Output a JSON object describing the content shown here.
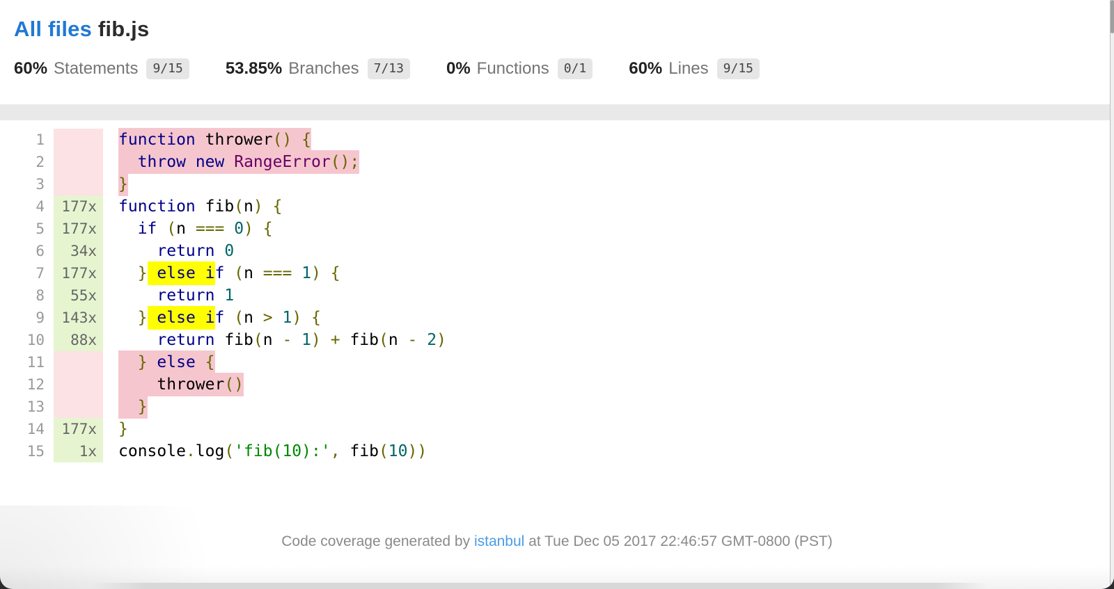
{
  "breadcrumb": {
    "all_files": "All files",
    "separator": " ",
    "file_name": "fib.js"
  },
  "metrics": [
    {
      "pct": "60%",
      "label": "Statements",
      "fraction": "9/15"
    },
    {
      "pct": "53.85%",
      "label": "Branches",
      "fraction": "7/13"
    },
    {
      "pct": "0%",
      "label": "Functions",
      "fraction": "0/1"
    },
    {
      "pct": "60%",
      "label": "Lines",
      "fraction": "9/15"
    }
  ],
  "code": {
    "lines": [
      {
        "num": "1",
        "hits": "",
        "cover": "no",
        "segments": [
          {
            "t": "function",
            "c": "kwd",
            "h": "s"
          },
          {
            "t": " thrower",
            "c": "pln",
            "h": "s"
          },
          {
            "t": "() ",
            "c": "pun",
            "h": "s"
          },
          {
            "t": "{",
            "c": "pun",
            "h": "s"
          }
        ]
      },
      {
        "num": "2",
        "hits": "",
        "cover": "no",
        "segments": [
          {
            "t": "  ",
            "c": "pln",
            "h": "s"
          },
          {
            "t": "throw",
            "c": "kwd",
            "h": "s"
          },
          {
            "t": " ",
            "c": "pln",
            "h": "s"
          },
          {
            "t": "new",
            "c": "kwd",
            "h": "s"
          },
          {
            "t": " ",
            "c": "pln",
            "h": "s"
          },
          {
            "t": "RangeError",
            "c": "typ",
            "h": "s"
          },
          {
            "t": "();",
            "c": "pun",
            "h": "s"
          }
        ]
      },
      {
        "num": "3",
        "hits": "",
        "cover": "no",
        "segments": [
          {
            "t": "}",
            "c": "pun",
            "h": "s"
          }
        ]
      },
      {
        "num": "4",
        "hits": "177x",
        "cover": "yes",
        "segments": [
          {
            "t": "function",
            "c": "kwd"
          },
          {
            "t": " fib",
            "c": "pln"
          },
          {
            "t": "(",
            "c": "pun"
          },
          {
            "t": "n",
            "c": "pln"
          },
          {
            "t": ") ",
            "c": "pun"
          },
          {
            "t": "{",
            "c": "pun"
          }
        ]
      },
      {
        "num": "5",
        "hits": "177x",
        "cover": "yes",
        "segments": [
          {
            "t": "  ",
            "c": "pln"
          },
          {
            "t": "if",
            "c": "kwd"
          },
          {
            "t": " ",
            "c": "pln"
          },
          {
            "t": "(",
            "c": "pun"
          },
          {
            "t": "n ",
            "c": "pln"
          },
          {
            "t": "===",
            "c": "pun"
          },
          {
            "t": " ",
            "c": "pln"
          },
          {
            "t": "0",
            "c": "lit"
          },
          {
            "t": ") ",
            "c": "pun"
          },
          {
            "t": "{",
            "c": "pun"
          }
        ]
      },
      {
        "num": "6",
        "hits": "34x",
        "cover": "yes",
        "segments": [
          {
            "t": "    ",
            "c": "pln"
          },
          {
            "t": "return",
            "c": "kwd"
          },
          {
            "t": " ",
            "c": "pln"
          },
          {
            "t": "0",
            "c": "lit"
          }
        ]
      },
      {
        "num": "7",
        "hits": "177x",
        "cover": "yes",
        "segments": [
          {
            "t": "  ",
            "c": "pln"
          },
          {
            "t": "}",
            "c": "pun"
          },
          {
            "t": " ",
            "c": "pln",
            "h": "b"
          },
          {
            "t": "else",
            "c": "kwd",
            "h": "b"
          },
          {
            "t": " i",
            "c": "kwd",
            "h": "b"
          },
          {
            "t": "f",
            "c": "kwd"
          },
          {
            "t": " ",
            "c": "pln"
          },
          {
            "t": "(",
            "c": "pun"
          },
          {
            "t": "n ",
            "c": "pln"
          },
          {
            "t": "===",
            "c": "pun"
          },
          {
            "t": " ",
            "c": "pln"
          },
          {
            "t": "1",
            "c": "lit"
          },
          {
            "t": ") ",
            "c": "pun"
          },
          {
            "t": "{",
            "c": "pun"
          }
        ]
      },
      {
        "num": "8",
        "hits": "55x",
        "cover": "yes",
        "segments": [
          {
            "t": "    ",
            "c": "pln"
          },
          {
            "t": "return",
            "c": "kwd"
          },
          {
            "t": " ",
            "c": "pln"
          },
          {
            "t": "1",
            "c": "lit"
          }
        ]
      },
      {
        "num": "9",
        "hits": "143x",
        "cover": "yes",
        "segments": [
          {
            "t": "  ",
            "c": "pln"
          },
          {
            "t": "}",
            "c": "pun"
          },
          {
            "t": " ",
            "c": "pln",
            "h": "b"
          },
          {
            "t": "else",
            "c": "kwd",
            "h": "b"
          },
          {
            "t": " i",
            "c": "kwd",
            "h": "b"
          },
          {
            "t": "f",
            "c": "kwd"
          },
          {
            "t": " ",
            "c": "pln"
          },
          {
            "t": "(",
            "c": "pun"
          },
          {
            "t": "n ",
            "c": "pln"
          },
          {
            "t": ">",
            "c": "pun"
          },
          {
            "t": " ",
            "c": "pln"
          },
          {
            "t": "1",
            "c": "lit"
          },
          {
            "t": ") ",
            "c": "pun"
          },
          {
            "t": "{",
            "c": "pun"
          }
        ]
      },
      {
        "num": "10",
        "hits": "88x",
        "cover": "yes",
        "segments": [
          {
            "t": "    ",
            "c": "pln"
          },
          {
            "t": "return",
            "c": "kwd"
          },
          {
            "t": " fib",
            "c": "pln"
          },
          {
            "t": "(",
            "c": "pun"
          },
          {
            "t": "n ",
            "c": "pln"
          },
          {
            "t": "-",
            "c": "pun"
          },
          {
            "t": " ",
            "c": "pln"
          },
          {
            "t": "1",
            "c": "lit"
          },
          {
            "t": ")",
            "c": "pun"
          },
          {
            "t": " ",
            "c": "pln"
          },
          {
            "t": "+",
            "c": "pun"
          },
          {
            "t": " fib",
            "c": "pln"
          },
          {
            "t": "(",
            "c": "pun"
          },
          {
            "t": "n ",
            "c": "pln"
          },
          {
            "t": "-",
            "c": "pun"
          },
          {
            "t": " ",
            "c": "pln"
          },
          {
            "t": "2",
            "c": "lit"
          },
          {
            "t": ")",
            "c": "pun"
          }
        ]
      },
      {
        "num": "11",
        "hits": "",
        "cover": "no",
        "segments": [
          {
            "t": "  ",
            "c": "pln",
            "h": "s"
          },
          {
            "t": "}",
            "c": "pun",
            "h": "s"
          },
          {
            "t": " ",
            "c": "pln",
            "h": "s"
          },
          {
            "t": "else",
            "c": "kwd",
            "h": "s"
          },
          {
            "t": " ",
            "c": "pln",
            "h": "s"
          },
          {
            "t": "{",
            "c": "pun",
            "h": "s"
          }
        ]
      },
      {
        "num": "12",
        "hits": "",
        "cover": "no",
        "segments": [
          {
            "t": "    ",
            "c": "pln",
            "h": "s"
          },
          {
            "t": "thrower",
            "c": "pln",
            "h": "s"
          },
          {
            "t": "()",
            "c": "pun",
            "h": "s"
          }
        ]
      },
      {
        "num": "13",
        "hits": "",
        "cover": "no",
        "segments": [
          {
            "t": "  ",
            "c": "pln",
            "h": "s"
          },
          {
            "t": "}",
            "c": "pun",
            "h": "s"
          }
        ]
      },
      {
        "num": "14",
        "hits": "177x",
        "cover": "yes",
        "segments": [
          {
            "t": "}",
            "c": "pun"
          }
        ]
      },
      {
        "num": "15",
        "hits": "1x",
        "cover": "yes",
        "segments": [
          {
            "t": "console",
            "c": "pln"
          },
          {
            "t": ".",
            "c": "pun"
          },
          {
            "t": "log",
            "c": "pln"
          },
          {
            "t": "(",
            "c": "pun"
          },
          {
            "t": "'fib(10):'",
            "c": "str"
          },
          {
            "t": ",",
            "c": "pun"
          },
          {
            "t": " fib",
            "c": "pln"
          },
          {
            "t": "(",
            "c": "pun"
          },
          {
            "t": "10",
            "c": "lit"
          },
          {
            "t": "))",
            "c": "pun"
          }
        ]
      }
    ]
  },
  "footer": {
    "prefix": "Code coverage generated by ",
    "link": "istanbul",
    "suffix": " at Tue Dec 05 2017 22:46:57 GMT-0800 (PST)"
  },
  "colors": {
    "breadcrumb_link": "#2079d4",
    "footer_link": "#4a9ce8",
    "status_band": "#e9e9e9",
    "gutter_covered": "#e6f5d0",
    "gutter_uncovered": "#fce1e5",
    "statement_uncovered": "#f6c6ce",
    "branch_uncovered": "#ffff00",
    "token_keyword": "#000088",
    "token_type": "#660066",
    "token_punctuation": "#666600",
    "token_literal": "#006666",
    "token_string": "#008800",
    "token_plain": "#000000"
  }
}
